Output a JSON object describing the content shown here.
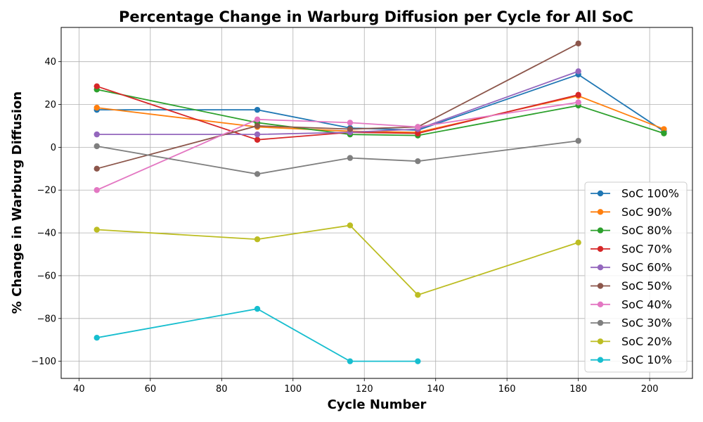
{
  "chart_data": {
    "type": "line",
    "title": "Percentage Change in Warburg Diffusion per Cycle for All SoC",
    "xlabel": "Cycle Number",
    "ylabel": "% Change in Warburg Diffusion",
    "xlim": [
      35,
      212
    ],
    "ylim": [
      -108,
      56
    ],
    "xticks": [
      40,
      60,
      80,
      100,
      120,
      140,
      160,
      180,
      200
    ],
    "yticks": [
      -100,
      -80,
      -60,
      -40,
      -20,
      0,
      20,
      40
    ],
    "grid": true,
    "legend_position": "lower-right",
    "series": [
      {
        "name": "SoC 100%",
        "color": "#1f77b4",
        "x": [
          45,
          90,
          116,
          135,
          180,
          204
        ],
        "y": [
          17.5,
          17.5,
          9,
          8,
          34,
          7.5
        ]
      },
      {
        "name": "SoC 90%",
        "color": "#ff7f0e",
        "x": [
          45,
          90,
          116,
          135,
          180,
          204
        ],
        "y": [
          18.5,
          9.5,
          7.5,
          7,
          24,
          8.5
        ]
      },
      {
        "name": "SoC 80%",
        "color": "#2ca02c",
        "x": [
          45,
          90,
          116,
          135,
          180,
          204
        ],
        "y": [
          27,
          11.5,
          6,
          5.5,
          19.5,
          6.5
        ]
      },
      {
        "name": "SoC 70%",
        "color": "#d62728",
        "x": [
          45,
          90,
          116,
          135,
          180
        ],
        "y": [
          28.5,
          3.5,
          7,
          6.5,
          24.5
        ]
      },
      {
        "name": "SoC 60%",
        "color": "#9467bd",
        "x": [
          45,
          90,
          116,
          135,
          180
        ],
        "y": [
          6,
          6,
          7,
          8.5,
          35.5
        ]
      },
      {
        "name": "SoC 50%",
        "color": "#8c564b",
        "x": [
          45,
          90,
          116,
          135,
          180
        ],
        "y": [
          -10,
          10,
          8.5,
          9.5,
          48.5
        ]
      },
      {
        "name": "SoC 40%",
        "color": "#e377c2",
        "x": [
          45,
          90,
          116,
          135,
          180
        ],
        "y": [
          -20,
          13,
          11.5,
          9.5,
          21
        ]
      },
      {
        "name": "SoC 30%",
        "color": "#7f7f7f",
        "x": [
          45,
          90,
          116,
          135,
          180
        ],
        "y": [
          0.5,
          -12.5,
          -5,
          -6.5,
          3
        ]
      },
      {
        "name": "SoC 20%",
        "color": "#bcbd22",
        "x": [
          45,
          90,
          116,
          135,
          180
        ],
        "y": [
          -38.5,
          -43,
          -36.5,
          -69,
          -44.5
        ]
      },
      {
        "name": "SoC 10%",
        "color": "#17becf",
        "x": [
          45,
          90,
          116,
          135
        ],
        "y": [
          -89,
          -75.5,
          -100,
          -100
        ]
      }
    ]
  }
}
